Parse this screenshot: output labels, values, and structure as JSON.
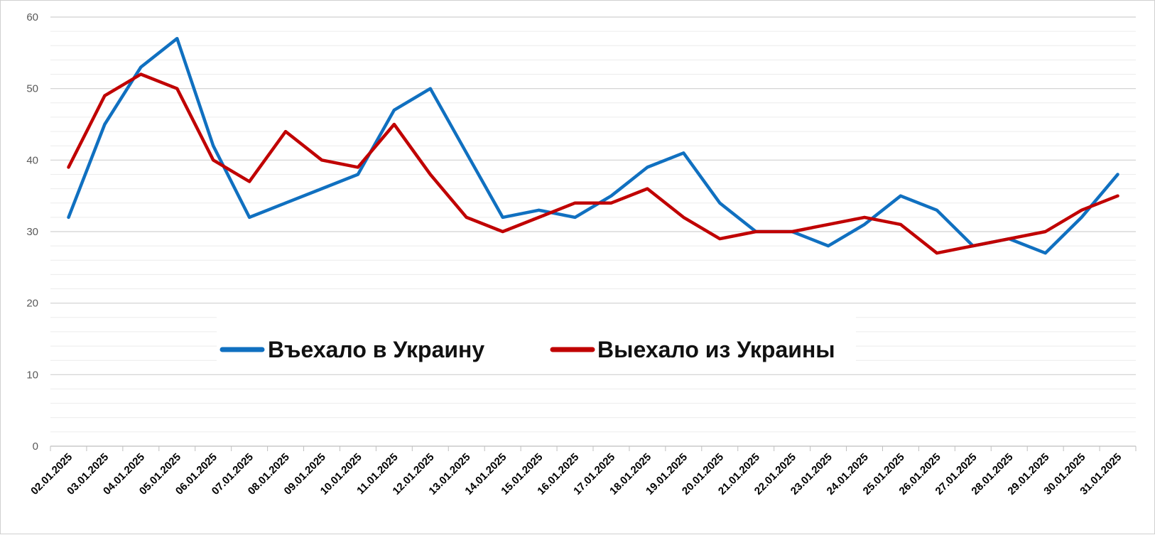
{
  "chart_data": {
    "type": "line",
    "categories": [
      "02.01.2025",
      "03.01.2025",
      "04.01.2025",
      "05.01.2025",
      "06.01.2025",
      "07.01.2025",
      "08.01.2025",
      "09.01.2025",
      "10.01.2025",
      "11.01.2025",
      "12.01.2025",
      "13.01.2025",
      "14.01.2025",
      "15.01.2025",
      "16.01.2025",
      "17.01.2025",
      "18.01.2025",
      "19.01.2025",
      "20.01.2025",
      "21.01.2025",
      "22.01.2025",
      "23.01.2025",
      "24.01.2025",
      "25.01.2025",
      "26.01.2025",
      "27.01.2025",
      "28.01.2025",
      "29.01.2025",
      "30.01.2025",
      "31.01.2025"
    ],
    "series": [
      {
        "name": "Въехало в Украину",
        "color": "#1070c0",
        "values": [
          32,
          45,
          53,
          57,
          42,
          32,
          34,
          36,
          38,
          47,
          50,
          41,
          32,
          33,
          32,
          35,
          39,
          41,
          34,
          30,
          30,
          28,
          31,
          35,
          33,
          28,
          29,
          27,
          32,
          38
        ]
      },
      {
        "name": "Выехало из Украины",
        "color": "#c00000",
        "values": [
          39,
          49,
          52,
          50,
          40,
          37,
          44,
          40,
          39,
          45,
          38,
          32,
          30,
          32,
          34,
          34,
          36,
          32,
          29,
          30,
          30,
          31,
          32,
          31,
          27,
          28,
          29,
          30,
          33,
          35
        ]
      }
    ],
    "ylim": [
      0,
      60
    ],
    "yticks": [
      0,
      10,
      20,
      30,
      40,
      50,
      60
    ],
    "grid": true,
    "legend_position": "center-bottom",
    "title": "",
    "xlabel": "",
    "ylabel": ""
  }
}
